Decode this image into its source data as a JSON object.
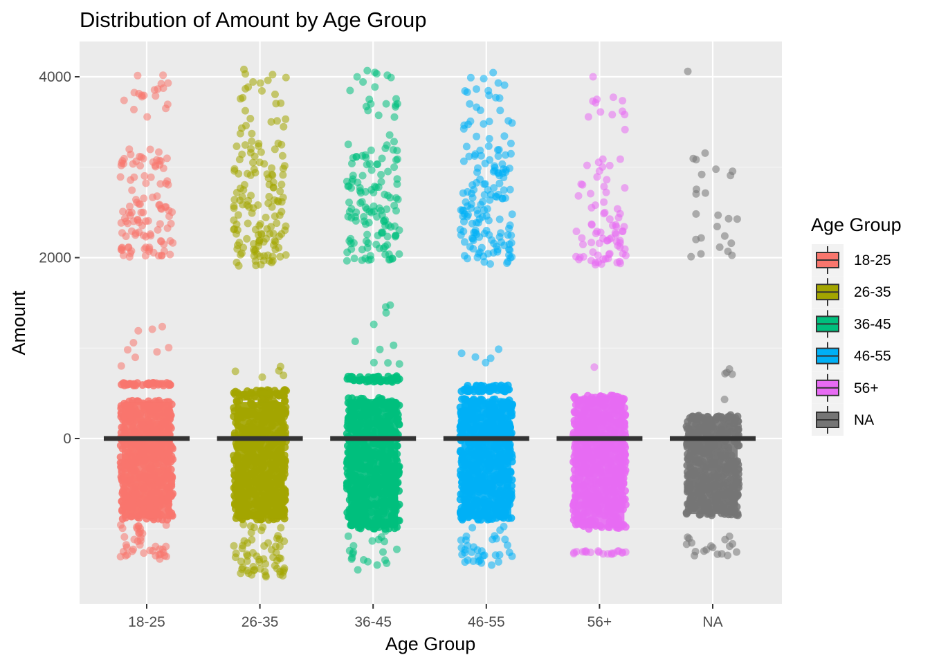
{
  "colors": {
    "panel_background": "#ebebeb",
    "grid_major": "#ffffff",
    "grid_minor": "#f5f5f5",
    "median_line": "#333333",
    "tick_text": "#4d4d4d"
  },
  "chart_data": {
    "type": "box-jitter",
    "title": "Distribution of Amount by Age Group",
    "xlabel": "Age Group",
    "ylabel": "Amount",
    "categories": [
      "18-25",
      "26-35",
      "36-45",
      "46-55",
      "56+",
      "NA"
    ],
    "ylim": [
      -1850,
      4350
    ],
    "y_ticks": [
      0,
      2000,
      4000
    ],
    "grid": true,
    "legend": {
      "title": "Age Group",
      "position": "right",
      "entries": [
        "18-25",
        "26-35",
        "36-45",
        "46-55",
        "56+",
        "NA"
      ]
    },
    "series": [
      {
        "name": "18-25",
        "color": "#f8766d",
        "median": 0,
        "dense_ranges": [
          [
            -900,
            420
          ],
          [
            585,
            615
          ]
        ],
        "sparse_ranges": [
          [
            2000,
            2600,
            70
          ],
          [
            2600,
            3200,
            40
          ],
          [
            3500,
            4020,
            18
          ],
          [
            800,
            1350,
            9
          ],
          [
            -1350,
            -950,
            40
          ]
        ]
      },
      {
        "name": "26-35",
        "color": "#a3a500",
        "median": 0,
        "dense_ranges": [
          [
            -900,
            420
          ],
          [
            460,
            540
          ]
        ],
        "sparse_ranges": [
          [
            1900,
            2600,
            75
          ],
          [
            2600,
            3300,
            55
          ],
          [
            3300,
            4100,
            25
          ],
          [
            650,
            820,
            5
          ],
          [
            -1550,
            -950,
            60
          ]
        ]
      },
      {
        "name": "36-45",
        "color": "#00bf7d",
        "median": 0,
        "dense_ranges": [
          [
            -1000,
            450
          ],
          [
            625,
            690
          ]
        ],
        "sparse_ranges": [
          [
            1950,
            2600,
            70
          ],
          [
            2600,
            3200,
            50
          ],
          [
            3200,
            4100,
            25
          ],
          [
            800,
            1500,
            10
          ],
          [
            -1550,
            -1000,
            20
          ]
        ]
      },
      {
        "name": "46-55",
        "color": "#00b0f6",
        "median": 0,
        "dense_ranges": [
          [
            -900,
            440
          ],
          [
            520,
            590
          ]
        ],
        "sparse_ranges": [
          [
            1920,
            2600,
            75
          ],
          [
            2600,
            3200,
            55
          ],
          [
            3200,
            4060,
            30
          ],
          [
            730,
            1270,
            5
          ],
          [
            -1400,
            -950,
            35
          ]
        ]
      },
      {
        "name": "56+",
        "color": "#e76bf3",
        "median": 0,
        "dense_ranges": [
          [
            -1000,
            480
          ]
        ],
        "sparse_ranges": [
          [
            1920,
            2500,
            55
          ],
          [
            2500,
            3100,
            20
          ],
          [
            3400,
            4060,
            12
          ],
          [
            790,
            790,
            1
          ],
          [
            -1280,
            -1240,
            20
          ]
        ]
      },
      {
        "name": "NA",
        "color": "#757575",
        "median": 0,
        "dense_ranges": [
          [
            -850,
            260
          ]
        ],
        "sparse_ranges": [
          [
            1970,
            2500,
            14
          ],
          [
            2700,
            3280,
            10
          ],
          [
            4060,
            4060,
            1
          ],
          [
            430,
            840,
            5
          ],
          [
            -1300,
            -1080,
            18
          ]
        ]
      }
    ]
  }
}
